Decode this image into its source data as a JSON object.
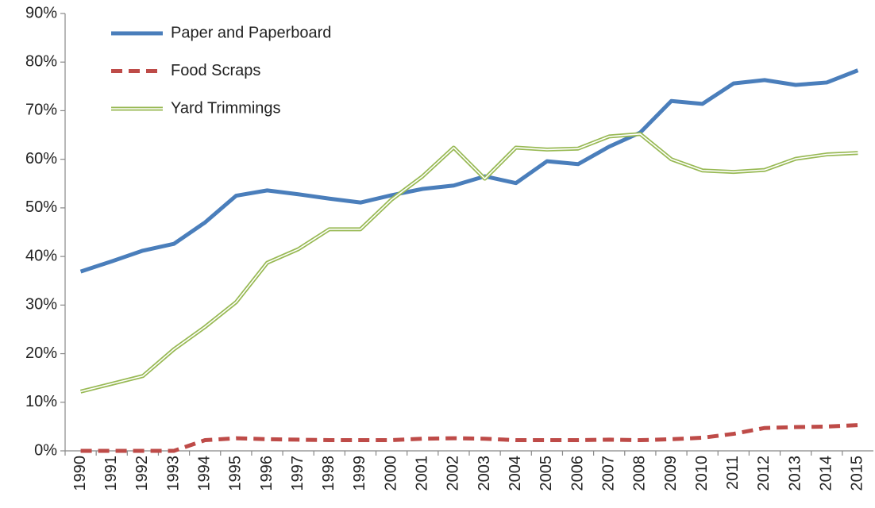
{
  "chart_data": {
    "type": "line",
    "categories": [
      "1990",
      "1991",
      "1992",
      "1993",
      "1994",
      "1995",
      "1996",
      "1997",
      "1998",
      "1999",
      "2000",
      "2001",
      "2002",
      "2003",
      "2004",
      "2005",
      "2006",
      "2007",
      "2008",
      "2009",
      "2010",
      "2011",
      "2012",
      "2013",
      "2014",
      "2015"
    ],
    "series": [
      {
        "name": "Paper and Paperboard",
        "color": "#4a7ebb",
        "style": "solid",
        "values": [
          36.9,
          39,
          41.2,
          42.6,
          47,
          52.5,
          53.6,
          52.8,
          51.9,
          51.1,
          52.6,
          53.9,
          54.6,
          56.5,
          55.1,
          59.6,
          59,
          62.6,
          65.5,
          72,
          71.4,
          75.6,
          76.3,
          75.3,
          75.8,
          78.3
        ]
      },
      {
        "name": "Food Scraps",
        "color": "#be4b48",
        "style": "dashed",
        "values": [
          0,
          0,
          0,
          0,
          2.2,
          2.6,
          2.4,
          2.3,
          2.2,
          2.2,
          2.2,
          2.5,
          2.6,
          2.5,
          2.2,
          2.2,
          2.2,
          2.3,
          2.2,
          2.4,
          2.7,
          3.5,
          4.7,
          4.9,
          5.0,
          5.3
        ]
      },
      {
        "name": "Yard Trimmings",
        "color": "#98b954",
        "style": "double",
        "values": [
          12.2,
          13.8,
          15.4,
          20.9,
          25.5,
          30.6,
          38.7,
          41.5,
          45.6,
          45.6,
          51.7,
          56.5,
          62.4,
          56,
          62.4,
          62,
          62.2,
          64.7,
          65.2,
          60,
          57.7,
          57.4,
          57.8,
          60.1,
          61,
          61.3
        ]
      }
    ],
    "ylim": [
      0,
      90
    ],
    "yticks": [
      {
        "value": 0,
        "label": "0%"
      },
      {
        "value": 10,
        "label": "10%"
      },
      {
        "value": 20,
        "label": "20%"
      },
      {
        "value": 30,
        "label": "30%"
      },
      {
        "value": 40,
        "label": "40%"
      },
      {
        "value": 50,
        "label": "50%"
      },
      {
        "value": 60,
        "label": "60%"
      },
      {
        "value": 70,
        "label": "70%"
      },
      {
        "value": 80,
        "label": "80%"
      },
      {
        "value": 90,
        "label": "90%"
      }
    ],
    "grid": false,
    "legend": "top-left"
  }
}
